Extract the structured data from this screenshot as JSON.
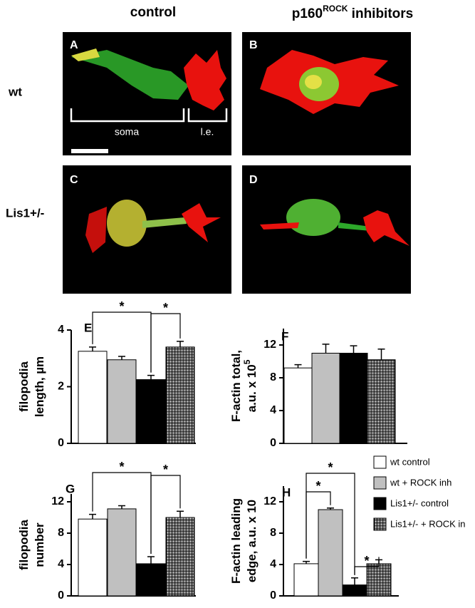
{
  "figure": {
    "columns": [
      {
        "text": "control"
      },
      {
        "text": "p160",
        "superscript": "ROCK",
        "suffix": " inhibitors"
      }
    ],
    "rows": [
      "wt",
      "Lis1+/-"
    ],
    "panels": [
      "A",
      "B",
      "C",
      "D"
    ],
    "annotations": [
      "soma",
      "l.e."
    ],
    "legend": [
      {
        "name": "wt control",
        "color": "#ffffff"
      },
      {
        "name": "wt + ROCK inh",
        "color": "#c0c0c0"
      },
      {
        "name": "Lis1+/- control",
        "color": "#000000"
      },
      {
        "name": "Lis1+/- + ROCK in",
        "color": "crosshatch"
      }
    ]
  },
  "chart_data": [
    {
      "type": "bar",
      "label": "E",
      "ylabel": [
        "filopodia",
        "length, µm"
      ],
      "categories": [
        null,
        null,
        null,
        null
      ],
      "values": [
        3.25,
        2.95,
        2.25,
        3.4
      ],
      "errors": [
        0.15,
        0.12,
        0.15,
        0.2
      ],
      "colors": [
        "#ffffff",
        "#c0c0c0",
        "#000000",
        "crosshatch"
      ],
      "ylim": [
        0,
        4
      ],
      "yticks": [
        0,
        2,
        4
      ],
      "annotations": [
        "*",
        "*"
      ]
    },
    {
      "type": "bar",
      "label": "F",
      "ylabel": [
        "F-actin total,",
        "a.u. x 10"
      ],
      "ylabel_superscript": "5",
      "categories": [
        null,
        null,
        null,
        null
      ],
      "values": [
        9.2,
        11.0,
        11.0,
        10.2
      ],
      "errors": [
        0.4,
        1.1,
        0.9,
        1.3
      ],
      "colors": [
        "#ffffff",
        "#c0c0c0",
        "#000000",
        "crosshatch"
      ],
      "ylim": [
        0,
        14
      ],
      "yticks": [
        0,
        4,
        8,
        12
      ],
      "annotations": []
    },
    {
      "type": "bar",
      "label": "G",
      "ylabel": [
        "filopodia",
        "number"
      ],
      "categories": [
        null,
        null,
        null,
        null
      ],
      "values": [
        9.8,
        11.1,
        4.1,
        10.0
      ],
      "errors": [
        0.6,
        0.4,
        0.9,
        0.8
      ],
      "colors": [
        "#ffffff",
        "#c0c0c0",
        "#000000",
        "crosshatch"
      ],
      "ylim": [
        0,
        13
      ],
      "yticks": [
        0,
        4,
        8,
        12
      ],
      "annotations": [
        "*",
        "*"
      ]
    },
    {
      "type": "bar",
      "label": "H",
      "ylabel": [
        "F-actin leading",
        "edge, a.u. x 10"
      ],
      "categories": [
        null,
        null,
        null,
        null
      ],
      "values": [
        4.1,
        11.0,
        1.4,
        4.1
      ],
      "errors": [
        0.3,
        0.2,
        0.9,
        0.5
      ],
      "colors": [
        "#ffffff",
        "#c0c0c0",
        "#000000",
        "crosshatch"
      ],
      "ylim": [
        0,
        14
      ],
      "yticks": [
        0,
        4,
        8,
        12
      ],
      "annotations": [
        "*",
        "*",
        "*"
      ]
    }
  ]
}
